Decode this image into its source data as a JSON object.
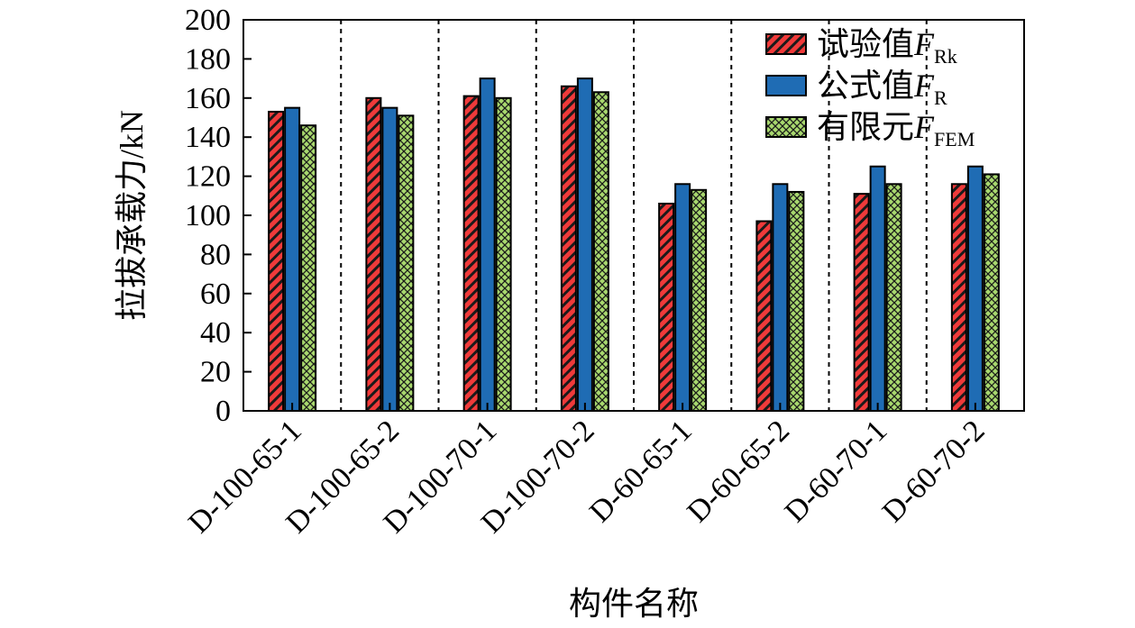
{
  "chart_data": {
    "type": "bar",
    "categories": [
      "D-100-65-1",
      "D-100-65-2",
      "D-100-70-1",
      "D-100-70-2",
      "D-60-65-1",
      "D-60-65-2",
      "D-60-70-1",
      "D-60-70-2"
    ],
    "series": [
      {
        "name": "试验值F_Rk",
        "label": "试验值",
        "symbol": "F",
        "subscript": "Rk",
        "color": "#ef3a3a",
        "pattern": "diagonal-stripes",
        "values": [
          153,
          160,
          161,
          166,
          106,
          97,
          111,
          116
        ]
      },
      {
        "name": "公式值F_R",
        "label": "公式值",
        "symbol": "F",
        "subscript": "R",
        "color": "#1f6cb4",
        "pattern": "solid",
        "values": [
          155,
          155,
          170,
          170,
          116,
          116,
          125,
          125
        ]
      },
      {
        "name": "有限元F_FEM",
        "label": "有限元",
        "symbol": "F",
        "subscript": "FEM",
        "color": "#a8d86e",
        "pattern": "cross-hatch",
        "values": [
          146,
          151,
          160,
          163,
          113,
          112,
          116,
          121
        ]
      }
    ],
    "xlabel": "构件名称",
    "ylabel": "拉拔承载力/kN",
    "ylim": [
      0,
      200
    ],
    "yticks": [
      0,
      20,
      40,
      60,
      80,
      100,
      120,
      140,
      160,
      180,
      200
    ],
    "legend_position": "top-right",
    "grid": false,
    "category_separators": "dashed"
  }
}
